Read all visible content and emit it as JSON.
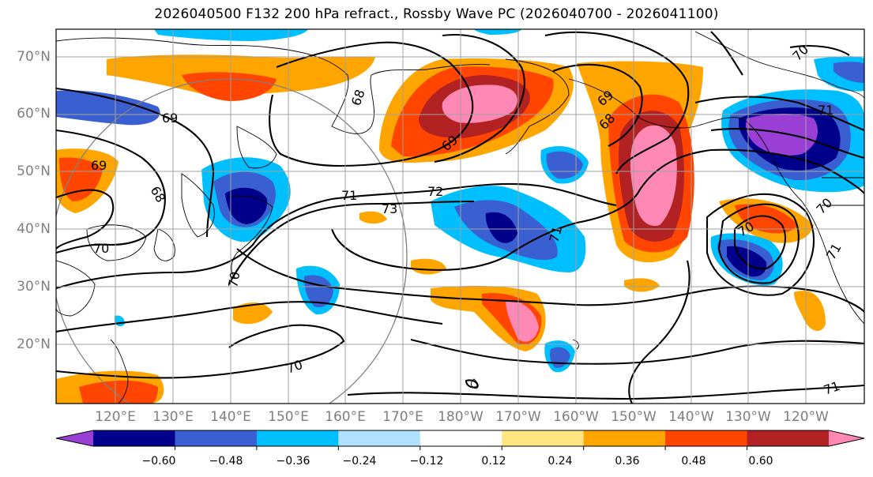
{
  "title": "2026040500 F132 200 hPa refract., Rossby Wave PC (2026040700 - 2026041100)",
  "latitude_labels": [
    "70°N",
    "60°N",
    "50°N",
    "40°N",
    "30°N",
    "20°N"
  ],
  "longitude_labels": [
    "120°E",
    "130°E",
    "140°E",
    "150°E",
    "160°E",
    "170°E",
    "180°W",
    "170°W",
    "160°W",
    "150°W",
    "140°W",
    "130°W",
    "120°W"
  ],
  "contour_labels": [
    "69",
    "68",
    "69",
    "69",
    "68",
    "71",
    "72",
    "73",
    "70",
    "70",
    "70",
    "68",
    "69",
    "70",
    "71",
    "71",
    "71",
    "70",
    "70",
    "71"
  ],
  "colorbar": {
    "ticks": [
      "−0.60",
      "−0.48",
      "−0.36",
      "−0.24",
      "−0.12",
      "0.12",
      "0.24",
      "0.36",
      "0.48",
      "0.60"
    ],
    "colors": [
      "#9a3fd6",
      "#00008b",
      "#3a5fd0",
      "#00bfff",
      "#b0e2ff",
      "#ffffff",
      "#ffe680",
      "#ffa500",
      "#ff4500",
      "#b22222",
      "#ff88b4"
    ]
  }
}
